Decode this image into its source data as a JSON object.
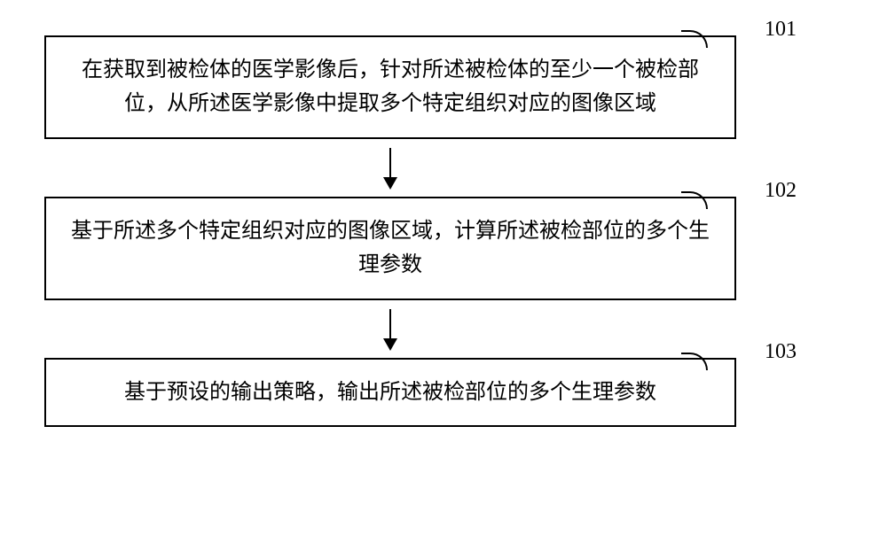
{
  "flowchart": {
    "type": "flowchart",
    "background_color": "#ffffff",
    "box_border_color": "#000000",
    "box_border_width": 2,
    "arrow_color": "#000000",
    "font_family": "SimSun",
    "text_fontsize": 24,
    "label_fontsize": 24,
    "steps": [
      {
        "id": "101",
        "text": "在获取到被检体的医学影像后，针对所述被检体的至少一个被检部位，从所述医学影像中提取多个特定组织对应的图像区域"
      },
      {
        "id": "102",
        "text": "基于所述多个特定组织对应的图像区域，计算所述被检部位的多个生理参数"
      },
      {
        "id": "103",
        "text": "基于预设的输出策略，输出所述被检部位的多个生理参数"
      }
    ]
  }
}
